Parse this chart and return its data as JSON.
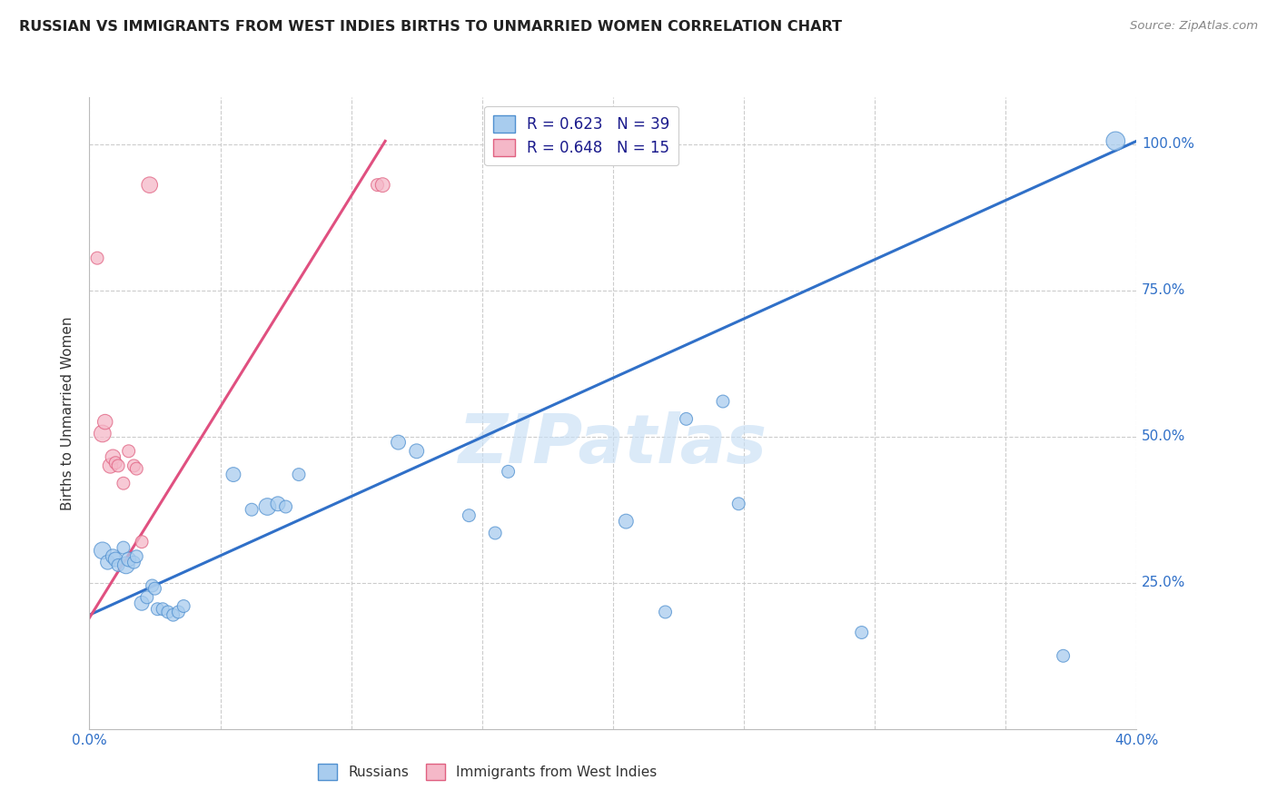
{
  "title": "RUSSIAN VS IMMIGRANTS FROM WEST INDIES BIRTHS TO UNMARRIED WOMEN CORRELATION CHART",
  "source": "Source: ZipAtlas.com",
  "ylabel": "Births to Unmarried Women",
  "xlim": [
    0.0,
    0.4
  ],
  "ylim": [
    0.0,
    1.08
  ],
  "legend_r_blue": "R = 0.623",
  "legend_n_blue": "N = 39",
  "legend_r_pink": "R = 0.648",
  "legend_n_pink": "N = 15",
  "blue_color": "#A8CCEE",
  "pink_color": "#F5B8C8",
  "blue_edge_color": "#5090D0",
  "pink_edge_color": "#E06080",
  "blue_line_color": "#3070C8",
  "pink_line_color": "#E05080",
  "watermark": "ZIPatlas",
  "blue_scatter_x": [
    0.005,
    0.007,
    0.009,
    0.01,
    0.011,
    0.013,
    0.014,
    0.015,
    0.017,
    0.018,
    0.02,
    0.022,
    0.024,
    0.025,
    0.026,
    0.028,
    0.03,
    0.032,
    0.034,
    0.036,
    0.055,
    0.062,
    0.068,
    0.072,
    0.075,
    0.08,
    0.118,
    0.125,
    0.145,
    0.155,
    0.16,
    0.205,
    0.22,
    0.228,
    0.242,
    0.248,
    0.295,
    0.372,
    0.392
  ],
  "blue_scatter_y": [
    0.305,
    0.285,
    0.295,
    0.29,
    0.28,
    0.31,
    0.28,
    0.29,
    0.285,
    0.295,
    0.215,
    0.225,
    0.245,
    0.24,
    0.205,
    0.205,
    0.2,
    0.195,
    0.2,
    0.21,
    0.435,
    0.375,
    0.38,
    0.385,
    0.38,
    0.435,
    0.49,
    0.475,
    0.365,
    0.335,
    0.44,
    0.355,
    0.2,
    0.53,
    0.56,
    0.385,
    0.165,
    0.125,
    1.005
  ],
  "blue_scatter_size": [
    180,
    130,
    130,
    130,
    100,
    100,
    180,
    130,
    100,
    100,
    130,
    100,
    100,
    100,
    100,
    100,
    100,
    100,
    100,
    100,
    130,
    100,
    180,
    130,
    100,
    100,
    130,
    130,
    100,
    100,
    100,
    130,
    100,
    100,
    100,
    100,
    100,
    100,
    220
  ],
  "pink_scatter_x": [
    0.003,
    0.005,
    0.006,
    0.008,
    0.009,
    0.01,
    0.011,
    0.013,
    0.015,
    0.017,
    0.018,
    0.02,
    0.023,
    0.11,
    0.112
  ],
  "pink_scatter_y": [
    0.805,
    0.505,
    0.525,
    0.45,
    0.465,
    0.455,
    0.45,
    0.42,
    0.475,
    0.45,
    0.445,
    0.32,
    0.93,
    0.93,
    0.93
  ],
  "pink_scatter_size": [
    100,
    180,
    140,
    140,
    140,
    100,
    100,
    100,
    100,
    100,
    100,
    100,
    160,
    100,
    130
  ],
  "blue_line_x": [
    0.0,
    0.4
  ],
  "blue_line_y": [
    0.195,
    1.005
  ],
  "pink_line_x": [
    0.0,
    0.113
  ],
  "pink_line_y": [
    0.19,
    1.005
  ]
}
